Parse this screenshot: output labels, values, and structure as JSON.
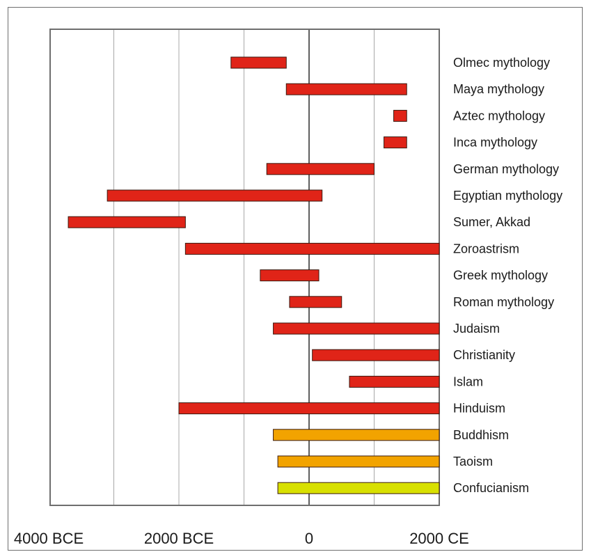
{
  "chart_data": {
    "type": "bar",
    "orientation": "horizontal",
    "title": "",
    "xlabel": "",
    "ylabel": "",
    "x_unit": "year (negative = BCE)",
    "xlim": [
      -4000,
      2000
    ],
    "x_ticks": [
      {
        "value": -4000,
        "label": "4000 BCE"
      },
      {
        "value": -2000,
        "label": "2000 BCE"
      },
      {
        "value": 0,
        "label": "0"
      },
      {
        "value": 2000,
        "label": "2000 CE"
      }
    ],
    "x_gridlines": [
      -3000,
      -2000,
      -1000,
      1000
    ],
    "zero_line": 0,
    "grid": true,
    "categories": [
      "Olmec mythology",
      "Maya mythology",
      "Aztec mythology",
      "Inca mythology",
      "German mythology",
      "Egyptian mythology",
      "Sumer, Akkad",
      "Zoroastrism",
      "Greek mythology",
      "Roman mythology",
      "Judaism",
      "Christianity",
      "Islam",
      "Hinduism",
      "Buddhism",
      "Taoism",
      "Confucianism"
    ],
    "ranges": [
      {
        "label": "Olmec mythology",
        "start": -1200,
        "end": -350,
        "color": "#e02418"
      },
      {
        "label": "Maya mythology",
        "start": -350,
        "end": 1500,
        "color": "#e02418"
      },
      {
        "label": "Aztec mythology",
        "start": 1300,
        "end": 1500,
        "color": "#e02418"
      },
      {
        "label": "Inca mythology",
        "start": 1150,
        "end": 1500,
        "color": "#e02418"
      },
      {
        "label": "German mythology",
        "start": -650,
        "end": 1000,
        "color": "#e02418"
      },
      {
        "label": "Egyptian mythology",
        "start": -3100,
        "end": 200,
        "color": "#e02418"
      },
      {
        "label": "Sumer, Akkad",
        "start": -3700,
        "end": -1900,
        "color": "#e02418"
      },
      {
        "label": "Zoroastrism",
        "start": -1900,
        "end": 2000,
        "color": "#e02418"
      },
      {
        "label": "Greek mythology",
        "start": -750,
        "end": 150,
        "color": "#e02418"
      },
      {
        "label": "Roman mythology",
        "start": -300,
        "end": 500,
        "color": "#e02418"
      },
      {
        "label": "Judaism",
        "start": -550,
        "end": 2000,
        "color": "#e02418"
      },
      {
        "label": "Christianity",
        "start": 50,
        "end": 2000,
        "color": "#e02418"
      },
      {
        "label": "Islam",
        "start": 620,
        "end": 2000,
        "color": "#e02418"
      },
      {
        "label": "Hinduism",
        "start": -2000,
        "end": 2000,
        "color": "#e02418"
      },
      {
        "label": "Buddhism",
        "start": -550,
        "end": 2000,
        "color": "#f2a300"
      },
      {
        "label": "Taoism",
        "start": -480,
        "end": 2000,
        "color": "#f2a300"
      },
      {
        "label": "Confucianism",
        "start": -480,
        "end": 2000,
        "color": "#d8e000"
      }
    ]
  }
}
